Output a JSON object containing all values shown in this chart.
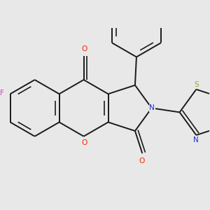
{
  "bg": "#e8e8e8",
  "bond_color": "#1a1a1a",
  "F_color": "#cc44cc",
  "O_color": "#ff2200",
  "N_color": "#2222ee",
  "S_color": "#aaaa00",
  "H_color": "#448888",
  "lw": 1.4,
  "fs": 7.2,
  "xlim": [
    -1.7,
    2.6
  ],
  "ylim": [
    -1.9,
    1.7
  ]
}
